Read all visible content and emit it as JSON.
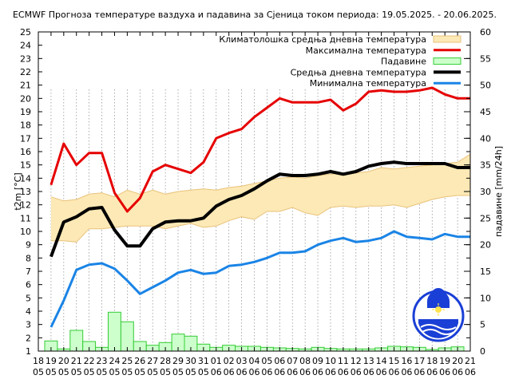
{
  "chart_data": {
    "type": "line",
    "title": "ECMWF Прогноза температуре ваздуха и падавина за Сјеница током периода: 19.05.2025. - 20.06.2025.",
    "ylabel_left": "t2m [°C]",
    "ylabel_right": "падавине [mm/24h]",
    "ylim_left": [
      1,
      25
    ],
    "ylim_right": [
      0,
      60
    ],
    "yticks_left": [
      1,
      2,
      3,
      4,
      5,
      6,
      7,
      8,
      9,
      10,
      11,
      12,
      13,
      14,
      15,
      16,
      17,
      18,
      19,
      20,
      21,
      22,
      23,
      24,
      25
    ],
    "yticks_right": [
      0,
      5,
      10,
      15,
      20,
      25,
      30,
      35,
      40,
      45,
      50,
      55,
      60
    ],
    "xticks": [
      {
        "day": "18",
        "month": "05"
      },
      {
        "day": "19",
        "month": "05"
      },
      {
        "day": "20",
        "month": "05"
      },
      {
        "day": "21",
        "month": "05"
      },
      {
        "day": "22",
        "month": "05"
      },
      {
        "day": "23",
        "month": "05"
      },
      {
        "day": "24",
        "month": "05"
      },
      {
        "day": "25",
        "month": "05"
      },
      {
        "day": "26",
        "month": "05"
      },
      {
        "day": "27",
        "month": "05"
      },
      {
        "day": "28",
        "month": "05"
      },
      {
        "day": "29",
        "month": "05"
      },
      {
        "day": "30",
        "month": "05"
      },
      {
        "day": "31",
        "month": "05"
      },
      {
        "day": "01",
        "month": "06"
      },
      {
        "day": "02",
        "month": "06"
      },
      {
        "day": "03",
        "month": "06"
      },
      {
        "day": "04",
        "month": "06"
      },
      {
        "day": "05",
        "month": "06"
      },
      {
        "day": "06",
        "month": "06"
      },
      {
        "day": "07",
        "month": "06"
      },
      {
        "day": "08",
        "month": "06"
      },
      {
        "day": "09",
        "month": "06"
      },
      {
        "day": "10",
        "month": "06"
      },
      {
        "day": "11",
        "month": "06"
      },
      {
        "day": "12",
        "month": "06"
      },
      {
        "day": "13",
        "month": "06"
      },
      {
        "day": "14",
        "month": "06"
      },
      {
        "day": "15",
        "month": "06"
      },
      {
        "day": "16",
        "month": "06"
      },
      {
        "day": "17",
        "month": "06"
      },
      {
        "day": "18",
        "month": "06"
      },
      {
        "day": "19",
        "month": "06"
      },
      {
        "day": "20",
        "month": "06"
      },
      {
        "day": "21",
        "month": "06"
      }
    ],
    "legend_position": "top-right",
    "legend": [
      {
        "label": "Климатолошка средња дневна температура",
        "kind": "band",
        "color": "#fde9b6",
        "edge": "#e8c27a"
      },
      {
        "label": "Максимална температура",
        "kind": "line",
        "color": "#e60000"
      },
      {
        "label": "Падавине",
        "kind": "bar",
        "color": "#ccffcc",
        "edge": "#33cc33"
      },
      {
        "label": "Средња дневна температура",
        "kind": "line",
        "color": "#000000"
      },
      {
        "label": "Минимална температура",
        "kind": "line",
        "color": "#1a84e6"
      }
    ],
    "series": [
      {
        "name": "Максимална температура",
        "color": "#e60000",
        "x": [
          19,
          20,
          21,
          22,
          23,
          24,
          25,
          26,
          27,
          28,
          29,
          30,
          31,
          32,
          33,
          34,
          35,
          36,
          37,
          38,
          39,
          40,
          41,
          42,
          43,
          44,
          45,
          46,
          47,
          48,
          49,
          50,
          51,
          52
        ],
        "values": [
          13.5,
          16.6,
          15.0,
          15.9,
          15.9,
          12.9,
          11.5,
          12.5,
          14.5,
          15.0,
          14.7,
          14.4,
          15.2,
          17.0,
          17.4,
          17.7,
          18.6,
          19.3,
          20.0,
          19.7,
          19.7,
          19.7,
          19.9,
          19.1,
          19.6,
          20.5,
          20.6,
          20.5,
          20.5,
          20.6,
          20.8,
          20.3,
          20.0,
          20.0
        ]
      },
      {
        "name": "Средња дневна температура",
        "color": "#000000",
        "x": [
          19,
          20,
          21,
          22,
          23,
          24,
          25,
          26,
          27,
          28,
          29,
          30,
          31,
          32,
          33,
          34,
          35,
          36,
          37,
          38,
          39,
          40,
          41,
          42,
          43,
          44,
          45,
          46,
          47,
          48,
          49,
          50,
          51,
          52
        ],
        "values": [
          8.1,
          10.7,
          11.1,
          11.7,
          11.8,
          10.1,
          8.9,
          8.9,
          10.2,
          10.7,
          10.8,
          10.8,
          11.0,
          11.9,
          12.4,
          12.7,
          13.2,
          13.8,
          14.3,
          14.2,
          14.2,
          14.3,
          14.5,
          14.3,
          14.5,
          14.9,
          15.1,
          15.2,
          15.1,
          15.1,
          15.1,
          15.1,
          14.8,
          14.8
        ]
      },
      {
        "name": "Минимална температура",
        "color": "#1a84e6",
        "x": [
          19,
          20,
          21,
          22,
          23,
          24,
          25,
          26,
          27,
          28,
          29,
          30,
          31,
          32,
          33,
          34,
          35,
          36,
          37,
          38,
          39,
          40,
          41,
          42,
          43,
          44,
          45,
          46,
          47,
          48,
          49,
          50,
          51,
          52
        ],
        "values": [
          2.8,
          4.8,
          7.1,
          7.5,
          7.6,
          7.2,
          6.3,
          5.3,
          5.8,
          6.3,
          6.9,
          7.1,
          6.8,
          6.9,
          7.4,
          7.5,
          7.7,
          8.0,
          8.4,
          8.4,
          8.5,
          9.0,
          9.3,
          9.5,
          9.2,
          9.3,
          9.5,
          10.0,
          9.6,
          9.5,
          9.4,
          9.8,
          9.6,
          9.6
        ]
      },
      {
        "name": "Климатолошка средња дневна температура",
        "x": [
          19,
          20,
          21,
          22,
          23,
          24,
          25,
          26,
          27,
          28,
          29,
          30,
          31,
          32,
          33,
          34,
          35,
          36,
          37,
          38,
          39,
          40,
          41,
          42,
          43,
          44,
          45,
          46,
          47,
          48,
          49,
          50,
          51,
          52
        ],
        "upper": [
          12.6,
          12.3,
          12.4,
          12.8,
          12.9,
          12.6,
          13.1,
          12.8,
          13.1,
          12.8,
          13.0,
          13.1,
          13.2,
          13.1,
          13.3,
          13.4,
          13.6,
          13.8,
          14.0,
          14.1,
          14.0,
          14.2,
          14.3,
          14.4,
          14.4,
          14.5,
          14.8,
          14.7,
          14.8,
          14.9,
          15.0,
          15.1,
          15.2,
          15.8
        ],
        "lower": [
          9.3,
          9.3,
          9.2,
          10.2,
          10.2,
          10.3,
          10.4,
          10.4,
          10.4,
          10.2,
          10.4,
          10.6,
          10.3,
          10.4,
          10.8,
          11.1,
          10.9,
          11.5,
          11.5,
          11.8,
          11.4,
          11.2,
          11.8,
          11.9,
          11.8,
          11.9,
          11.9,
          12.0,
          11.8,
          12.1,
          12.4,
          12.6,
          12.7,
          12.7
        ]
      }
    ],
    "precipitation": {
      "name": "Падавине",
      "axis": "right",
      "x": [
        19,
        20,
        21,
        22,
        23,
        24,
        25,
        26,
        27,
        28,
        29,
        30,
        31,
        32,
        33,
        34,
        35,
        36,
        37,
        38,
        39,
        40,
        41,
        42,
        43,
        44,
        45,
        46,
        47,
        48,
        49,
        50,
        51,
        52
      ],
      "values": [
        1.9,
        0.4,
        3.9,
        1.8,
        0.7,
        7.3,
        5.5,
        1.8,
        1.1,
        1.6,
        3.2,
        2.8,
        1.3,
        0.7,
        1.1,
        0.9,
        0.9,
        0.7,
        0.6,
        0.5,
        0.4,
        0.7,
        0.5,
        0.4,
        0.4,
        0.4,
        0.6,
        0.9,
        0.8,
        0.7,
        0.3,
        0.6,
        0.8,
        0.0
      ]
    }
  }
}
